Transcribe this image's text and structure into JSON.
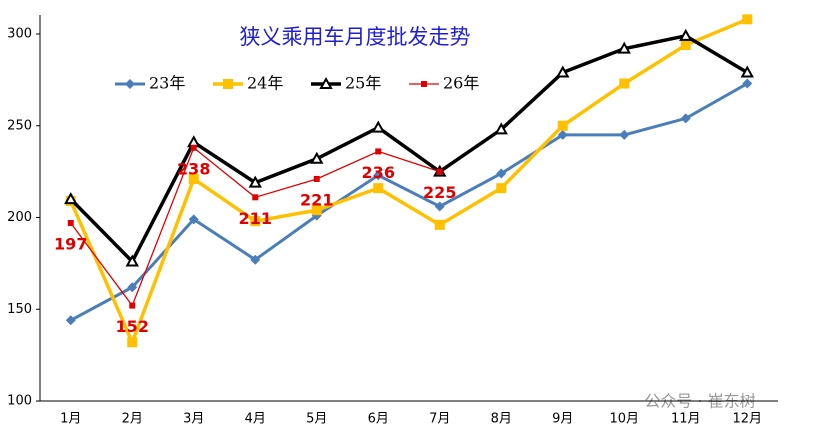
{
  "chart_data": {
    "type": "line",
    "title": "狭义乘用车月度批发走势",
    "categories": [
      "1月",
      "2月",
      "3月",
      "4月",
      "5月",
      "6月",
      "7月",
      "8月",
      "9月",
      "10月",
      "11月",
      "12月"
    ],
    "ylim": [
      100,
      300
    ],
    "yticks": [
      100,
      150,
      200,
      250,
      300
    ],
    "series": [
      {
        "name": "23年",
        "color": "#4a7ebb",
        "marker": "diamond",
        "values": [
          144,
          162,
          199,
          177,
          201,
          223,
          206,
          224,
          245,
          245,
          254,
          273
        ]
      },
      {
        "name": "24年",
        "color": "#ffc000",
        "marker": "square",
        "values": [
          209,
          132,
          221,
          198,
          204,
          216,
          196,
          216,
          250,
          273,
          294,
          308
        ]
      },
      {
        "name": "25年",
        "color": "#000000",
        "marker": "triangle",
        "values": [
          210,
          176,
          241,
          219,
          232,
          249,
          225,
          248,
          279,
          292,
          299,
          279
        ]
      },
      {
        "name": "26年",
        "color": "#e00000",
        "marker": "small-square",
        "data_labels": true,
        "values": [
          197,
          152,
          238,
          211,
          221,
          236,
          225,
          null,
          null,
          null,
          null,
          null
        ]
      }
    ],
    "legend": "top",
    "watermark": "公众号 · 崔东树"
  }
}
